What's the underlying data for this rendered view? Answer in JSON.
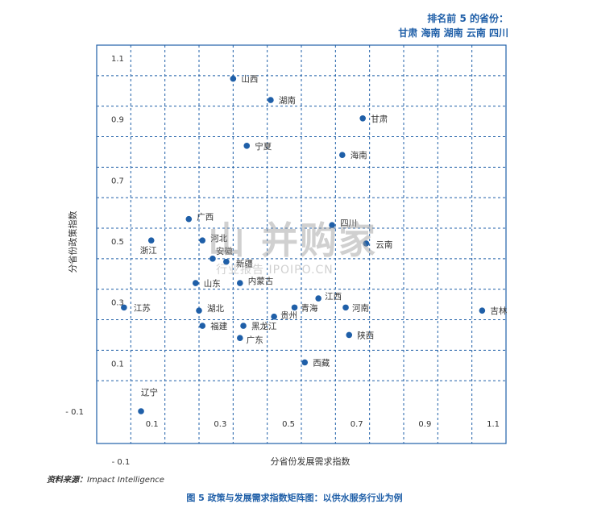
{
  "callout": {
    "title": "排名前 5 的省份：",
    "provinces": "甘肃  海南  湖南  云南  四川"
  },
  "source": {
    "label": "资料来源：",
    "text": "Impact Intelligence"
  },
  "caption": "图 5  政策与发展需求指数矩阵图：以供水服务行业为例",
  "watermark": {
    "line1": "山 并购家",
    "line2": "行业报告 IPOIPO.CN"
  },
  "colors": {
    "accent": "#1f5fa8",
    "point": "#1f5fa8",
    "grid": "#1f5fa8"
  },
  "chart_data": {
    "type": "scatter",
    "xlabel": "分省份发展需求指数",
    "ylabel": "分省份政策指数",
    "xlim": [
      -0.1,
      1.1
    ],
    "ylim": [
      -0.1,
      1.1
    ],
    "x_ticks": [
      "- 0.1",
      "0.1",
      "0.3",
      "0.5",
      "0.7",
      "0.9",
      "1.1"
    ],
    "y_ticks": [
      "- 0.1",
      "0.1",
      "0.3",
      "0.5",
      "0.7",
      "0.9",
      "1.1"
    ],
    "grid": true,
    "points": [
      {
        "label": "山西",
        "x": 0.3,
        "y": 0.99
      },
      {
        "label": "湖南",
        "x": 0.41,
        "y": 0.92
      },
      {
        "label": "甘肃",
        "x": 0.68,
        "y": 0.86
      },
      {
        "label": "宁夏",
        "x": 0.34,
        "y": 0.77
      },
      {
        "label": "海南",
        "x": 0.62,
        "y": 0.74
      },
      {
        "label": "广西",
        "x": 0.17,
        "y": 0.53
      },
      {
        "label": "四川",
        "x": 0.59,
        "y": 0.51
      },
      {
        "label": "浙江",
        "x": 0.06,
        "y": 0.46
      },
      {
        "label": "河北",
        "x": 0.21,
        "y": 0.46
      },
      {
        "label": "云南",
        "x": 0.69,
        "y": 0.45
      },
      {
        "label": "安徽",
        "x": 0.24,
        "y": 0.4
      },
      {
        "label": "新疆",
        "x": 0.28,
        "y": 0.39
      },
      {
        "label": "山东",
        "x": 0.19,
        "y": 0.32
      },
      {
        "label": "内蒙古",
        "x": 0.32,
        "y": 0.32
      },
      {
        "label": "江西",
        "x": 0.55,
        "y": 0.27
      },
      {
        "label": "青海",
        "x": 0.48,
        "y": 0.24
      },
      {
        "label": "河南",
        "x": 0.63,
        "y": 0.24
      },
      {
        "label": "江苏",
        "x": -0.02,
        "y": 0.24
      },
      {
        "label": "湖北",
        "x": 0.2,
        "y": 0.23
      },
      {
        "label": "吉林",
        "x": 1.03,
        "y": 0.23
      },
      {
        "label": "贵州",
        "x": 0.42,
        "y": 0.21
      },
      {
        "label": "黑龙江",
        "x": 0.33,
        "y": 0.18
      },
      {
        "label": "福建",
        "x": 0.21,
        "y": 0.18
      },
      {
        "label": "陕西",
        "x": 0.64,
        "y": 0.15
      },
      {
        "label": "广东",
        "x": 0.32,
        "y": 0.14
      },
      {
        "label": "西藏",
        "x": 0.51,
        "y": 0.06
      },
      {
        "label": "辽宁",
        "x": 0.03,
        "y": -0.1
      }
    ]
  }
}
